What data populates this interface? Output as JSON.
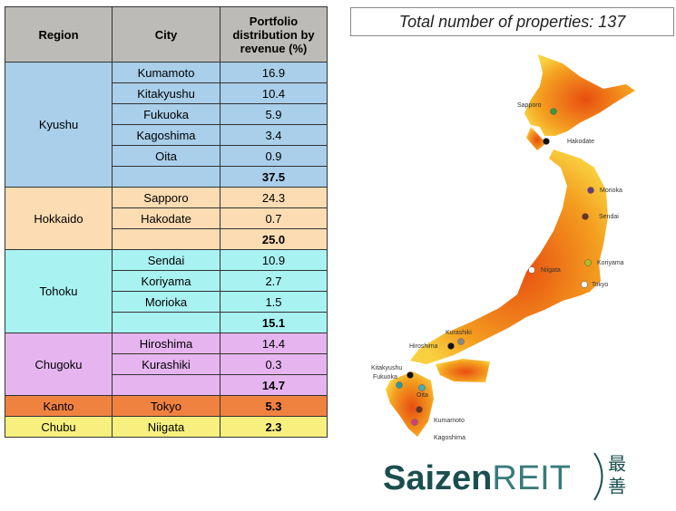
{
  "table": {
    "header": [
      "Region",
      "City",
      "Portfolio distribution by revenue (%)"
    ],
    "groups": [
      {
        "region": "Kyushu",
        "color": "#a9cfea",
        "rows": [
          [
            "Kumamoto",
            "16.9"
          ],
          [
            "Kitakyushu",
            "10.4"
          ],
          [
            "Fukuoka",
            "5.9"
          ],
          [
            "Kagoshima",
            "3.4"
          ],
          [
            "Oita",
            "0.9"
          ]
        ],
        "total": "37.5"
      },
      {
        "region": "Hokkaido",
        "color": "#fcdcb2",
        "rows": [
          [
            "Sapporo",
            "24.3"
          ],
          [
            "Hakodate",
            "0.7"
          ]
        ],
        "total": "25.0"
      },
      {
        "region": "Tohoku",
        "color": "#a8f2f2",
        "rows": [
          [
            "Sendai",
            "10.9"
          ],
          [
            "Koriyama",
            "2.7"
          ],
          [
            "Morioka",
            "1.5"
          ]
        ],
        "total": "15.1"
      },
      {
        "region": "Chugoku",
        "color": "#e6b5f0",
        "rows": [
          [
            "Hiroshima",
            "14.4"
          ],
          [
            "Kurashiki",
            "0.3"
          ]
        ],
        "total": "14.7"
      },
      {
        "region": "Kanto",
        "color": "#f08240",
        "rows": [
          [
            "Tokyo",
            "5.3"
          ]
        ]
      },
      {
        "region": "Chubu",
        "color": "#f7f07f",
        "rows": [
          [
            "Niigata",
            "2.3"
          ]
        ]
      }
    ]
  },
  "summary": "Total number of properties: 137",
  "map": {
    "cities": [
      "Sapporo",
      "Hakodate",
      "Morioka",
      "Sendai",
      "Koriyama",
      "Niigata",
      "Tokyo",
      "Kurashiki",
      "Hiroshima",
      "Kitakyushu",
      "Fukuoka",
      "Oita",
      "Kumamoto",
      "Kagoshima"
    ]
  },
  "logo": {
    "name": "Saizen",
    "suffix": "REIT",
    "mark": [
      "最",
      "善"
    ]
  }
}
